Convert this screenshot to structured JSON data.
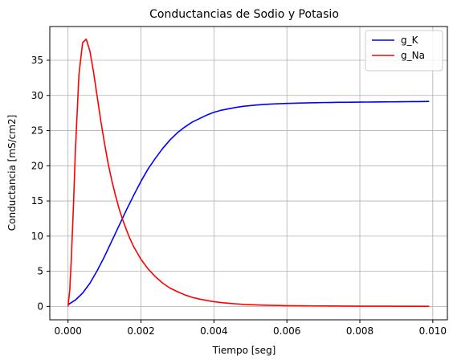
{
  "chart_data": {
    "type": "line",
    "title": "Conductancias de Sodio y Potasio",
    "xlabel": "Tiempo [seg]",
    "ylabel": "Conductancia [mS/cm2]",
    "xlim": [
      -0.0005,
      0.0104
    ],
    "ylim": [
      -1.9,
      39.8
    ],
    "xticks": [
      0,
      0.002,
      0.004,
      0.006,
      0.008,
      0.01
    ],
    "xtick_labels": [
      "0.000",
      "0.002",
      "0.004",
      "0.006",
      "0.008",
      "0.010"
    ],
    "yticks": [
      0,
      5,
      10,
      15,
      20,
      25,
      30,
      35
    ],
    "ytick_labels": [
      "0",
      "5",
      "10",
      "15",
      "20",
      "25",
      "30",
      "35"
    ],
    "grid": true,
    "legend_position": "top-right",
    "series": [
      {
        "name": "g_K",
        "color": "#0000ff",
        "x": [
          0,
          0.0002,
          0.0004,
          0.0006,
          0.0008,
          0.001,
          0.0012,
          0.0014,
          0.0016,
          0.0018,
          0.002,
          0.0022,
          0.0024,
          0.0026,
          0.0028,
          0.003,
          0.0032,
          0.0034,
          0.0036,
          0.0038,
          0.004,
          0.0042,
          0.0044,
          0.0046,
          0.0048,
          0.005,
          0.0052,
          0.0054,
          0.0056,
          0.0058,
          0.006,
          0.0062,
          0.0064,
          0.0066,
          0.0068,
          0.007,
          0.0072,
          0.0074,
          0.0076,
          0.0078,
          0.008,
          0.0082,
          0.0084,
          0.0086,
          0.0088,
          0.009,
          0.0092,
          0.0094,
          0.0096,
          0.0098,
          0.0099
        ],
        "values": [
          0.25,
          0.9,
          1.9,
          3.3,
          5.1,
          7.1,
          9.3,
          11.5,
          13.7,
          15.8,
          17.8,
          19.6,
          21.1,
          22.5,
          23.7,
          24.7,
          25.5,
          26.2,
          26.7,
          27.2,
          27.6,
          27.9,
          28.1,
          28.3,
          28.45,
          28.55,
          28.65,
          28.72,
          28.78,
          28.83,
          28.87,
          28.9,
          28.93,
          28.95,
          28.97,
          28.99,
          29.0,
          29.02,
          29.03,
          29.04,
          29.05,
          29.06,
          29.07,
          29.08,
          29.09,
          29.1,
          29.11,
          29.12,
          29.13,
          29.14,
          29.15
        ]
      },
      {
        "name": "g_Na",
        "color": "#ff0000",
        "x": [
          0,
          5e-05,
          0.0001,
          0.00015,
          0.0002,
          0.0003,
          0.0004,
          0.0005,
          0.0006,
          0.0007,
          0.0008,
          0.0009,
          0.001,
          0.0011,
          0.0012,
          0.0013,
          0.0014,
          0.0015,
          0.0016,
          0.0017,
          0.0018,
          0.0019,
          0.002,
          0.0022,
          0.0024,
          0.0026,
          0.0028,
          0.003,
          0.0032,
          0.0034,
          0.0036,
          0.0038,
          0.004,
          0.0042,
          0.0044,
          0.0046,
          0.0048,
          0.005,
          0.0052,
          0.0054,
          0.0056,
          0.0058,
          0.006,
          0.0064,
          0.0068,
          0.0072,
          0.0076,
          0.008,
          0.0084,
          0.0088,
          0.0092,
          0.0096,
          0.0099
        ],
        "values": [
          0,
          2.5,
          8.0,
          14.5,
          22.0,
          33.0,
          37.5,
          38.0,
          36.3,
          33.3,
          29.8,
          26.3,
          23.2,
          20.3,
          17.9,
          15.8,
          13.9,
          12.3,
          10.9,
          9.6,
          8.5,
          7.6,
          6.7,
          5.3,
          4.2,
          3.3,
          2.6,
          2.1,
          1.65,
          1.3,
          1.05,
          0.85,
          0.68,
          0.55,
          0.45,
          0.37,
          0.3,
          0.25,
          0.21,
          0.18,
          0.15,
          0.13,
          0.11,
          0.09,
          0.07,
          0.06,
          0.05,
          0.04,
          0.035,
          0.03,
          0.025,
          0.02,
          0.02
        ]
      }
    ]
  }
}
